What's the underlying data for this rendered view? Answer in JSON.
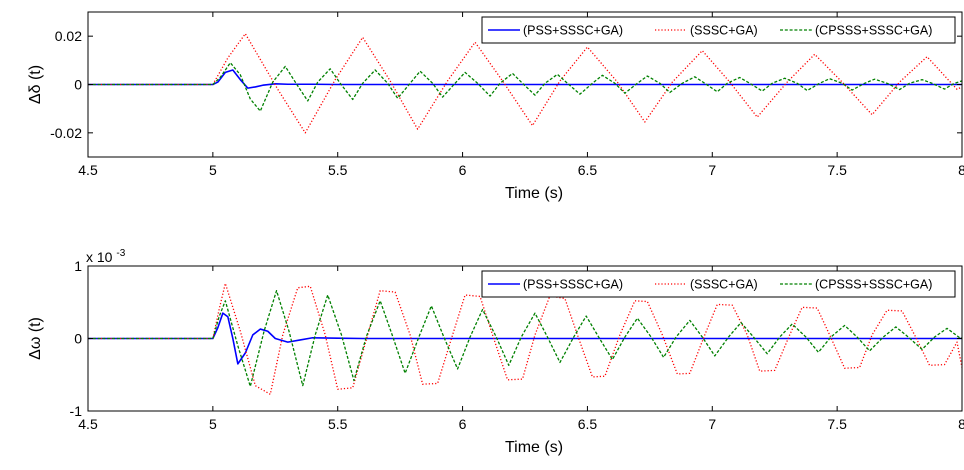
{
  "colors": {
    "series": [
      "#0000ff",
      "#ff0000",
      "#008000"
    ],
    "axes": "#000000",
    "background": "#ffffff"
  },
  "chart_data": [
    {
      "type": "line",
      "ylabel": "Δδ (t)",
      "xlabel": "Time (s)",
      "xlim": [
        4.5,
        8
      ],
      "ylim": [
        -0.03,
        0.03
      ],
      "xticks": [
        "4.5",
        "5",
        "5.5",
        "6",
        "6.5",
        "7",
        "7.5",
        "8"
      ],
      "yticks": [
        "-0.02",
        "0",
        "0.02"
      ],
      "ytick_values": [
        -0.02,
        0,
        0.02
      ],
      "legend_position": "top-right",
      "grid": false,
      "series": [
        {
          "name": "(PSS+SSSC+GA)",
          "style": "solid",
          "x": [
            4.5,
            5.0,
            5.02,
            5.05,
            5.08,
            5.11,
            5.14,
            5.17,
            5.2,
            5.25,
            5.3,
            5.4,
            5.5,
            8.0
          ],
          "y": [
            0,
            0,
            0.001,
            0.005,
            0.006,
            0.002,
            -0.0015,
            -0.001,
            -0.0003,
            0.0003,
            0.0001,
            0.0001,
            0,
            0
          ]
        },
        {
          "name": "(SSSC+GA)",
          "style": "dotted",
          "x": [
            4.5,
            5.0,
            5.06,
            5.13,
            5.26,
            5.37,
            5.49,
            5.6,
            5.71,
            5.82,
            5.94,
            6.05,
            6.16,
            6.28,
            6.39,
            6.5,
            6.62,
            6.73,
            6.84,
            6.96,
            7.07,
            7.18,
            7.3,
            7.41,
            7.52,
            7.64,
            7.75,
            7.86,
            7.98,
            8.0
          ],
          "y": [
            0,
            0,
            0.011,
            0.021,
            -0.002,
            -0.02,
            0.002,
            0.0195,
            0.0015,
            -0.0185,
            0.0015,
            0.0175,
            0.0015,
            -0.017,
            0.0015,
            0.0155,
            0.001,
            -0.0155,
            0.001,
            0.014,
            0.001,
            -0.0135,
            0.001,
            0.0125,
            0.001,
            -0.0125,
            0.001,
            0.0115,
            -0.002,
            -0.001
          ]
        },
        {
          "name": "(CPSSS+SSSC+GA)",
          "style": "dashed",
          "x": [
            4.5,
            5.0,
            5.03,
            5.07,
            5.11,
            5.15,
            5.19,
            5.24,
            5.29,
            5.33,
            5.38,
            5.42,
            5.47,
            5.51,
            5.56,
            5.6,
            5.65,
            5.7,
            5.74,
            5.79,
            5.83,
            5.88,
            5.92,
            5.97,
            6.01,
            6.06,
            6.11,
            6.15,
            6.2,
            6.24,
            6.29,
            6.33,
            6.38,
            6.42,
            6.47,
            6.52,
            6.56,
            6.61,
            6.65,
            6.7,
            6.74,
            6.79,
            6.83,
            6.88,
            6.93,
            6.97,
            7.02,
            7.06,
            7.11,
            7.15,
            7.2,
            7.24,
            7.29,
            7.34,
            7.38,
            7.43,
            7.47,
            7.52,
            7.56,
            7.61,
            7.65,
            7.7,
            7.75,
            7.79,
            7.84,
            7.88,
            7.93,
            7.97,
            8.0
          ],
          "y": [
            0,
            0,
            0.003,
            0.009,
            0.004,
            -0.006,
            -0.011,
            0.001,
            0.0075,
            0.001,
            -0.0068,
            0.001,
            0.0065,
            0.0005,
            -0.0062,
            0.0005,
            0.006,
            0.0005,
            -0.0057,
            0.0005,
            0.0055,
            0.0005,
            -0.0052,
            0.0005,
            0.005,
            0.0005,
            -0.0048,
            0.0005,
            0.0046,
            0.0005,
            -0.0044,
            0.0005,
            0.0042,
            0.0005,
            -0.004,
            0.0005,
            0.0038,
            0.0005,
            -0.0036,
            0.0005,
            0.0035,
            0.0005,
            -0.0033,
            0.0005,
            0.0032,
            0.0005,
            -0.003,
            0.0005,
            0.0029,
            0.0005,
            -0.0027,
            0.0005,
            0.0026,
            0.0005,
            -0.0025,
            0.0005,
            0.0024,
            0.0005,
            -0.0023,
            0.0005,
            0.0022,
            0.0005,
            -0.0021,
            0.0005,
            0.002,
            0.0005,
            -0.0019,
            0.0005,
            0.0015
          ]
        }
      ]
    },
    {
      "type": "line",
      "ylabel": "Δω (t)",
      "xlabel": "Time (s)",
      "exponent_base": "x 10",
      "exponent_power": "-3",
      "xlim": [
        4.5,
        8
      ],
      "ylim": [
        -1,
        1
      ],
      "xticks": [
        "4.5",
        "5",
        "5.5",
        "6",
        "6.5",
        "7",
        "7.5",
        "8"
      ],
      "yticks": [
        "-1",
        "0",
        "1"
      ],
      "ytick_values": [
        -1,
        0,
        1
      ],
      "legend_position": "top-right",
      "grid": false,
      "series": [
        {
          "name": "(PSS+SSSC+GA)",
          "style": "solid",
          "x": [
            4.5,
            5.0,
            5.02,
            5.04,
            5.06,
            5.08,
            5.1,
            5.13,
            5.16,
            5.19,
            5.22,
            5.25,
            5.3,
            5.35,
            5.4,
            5.5,
            5.6,
            8.0
          ],
          "y": [
            0,
            0,
            0.15,
            0.35,
            0.3,
            0.0,
            -0.35,
            -0.2,
            0.05,
            0.13,
            0.1,
            0.0,
            -0.05,
            -0.02,
            0.01,
            0.005,
            0,
            0
          ]
        },
        {
          "name": "(SSSC+GA)",
          "style": "dotted",
          "x": [
            4.5,
            5.0,
            5.025,
            5.05,
            5.11,
            5.17,
            5.23,
            5.28,
            5.34,
            5.39,
            5.45,
            5.5,
            5.56,
            5.62,
            5.67,
            5.73,
            5.79,
            5.84,
            5.9,
            5.96,
            6.01,
            6.07,
            6.12,
            6.18,
            6.24,
            6.29,
            6.35,
            6.41,
            6.46,
            6.52,
            6.57,
            6.63,
            6.69,
            6.74,
            6.8,
            6.86,
            6.91,
            6.97,
            7.02,
            7.08,
            7.14,
            7.19,
            7.25,
            7.31,
            7.36,
            7.42,
            7.47,
            7.53,
            7.59,
            7.64,
            7.7,
            7.76,
            7.81,
            7.87,
            7.93,
            7.98,
            8.0
          ],
          "y": [
            0,
            0,
            0.4,
            0.76,
            0.1,
            -0.65,
            -0.77,
            0.05,
            0.7,
            0.72,
            0.05,
            -0.7,
            -0.68,
            0.05,
            0.66,
            0.64,
            0.05,
            -0.63,
            -0.62,
            0.05,
            0.6,
            0.58,
            0.05,
            -0.57,
            -0.56,
            0.05,
            0.59,
            0.55,
            0.05,
            -0.53,
            -0.52,
            0.05,
            0.52,
            0.51,
            0.05,
            -0.49,
            -0.48,
            0.05,
            0.47,
            0.46,
            0.05,
            -0.45,
            -0.44,
            0.05,
            0.43,
            0.42,
            0.05,
            -0.41,
            -0.4,
            0.05,
            0.39,
            0.38,
            0.05,
            -0.37,
            -0.36,
            -0.05,
            -0.4
          ]
        },
        {
          "name": "(CPSSS+SSSC+GA)",
          "style": "dashed",
          "x": [
            4.5,
            5.0,
            5.025,
            5.05,
            5.1,
            5.15,
            5.205,
            5.255,
            5.305,
            5.36,
            5.41,
            5.46,
            5.515,
            5.565,
            5.615,
            5.67,
            5.72,
            5.77,
            5.825,
            5.875,
            5.925,
            5.98,
            6.03,
            6.08,
            6.135,
            6.185,
            6.235,
            6.29,
            6.34,
            6.39,
            6.445,
            6.495,
            6.545,
            6.6,
            6.65,
            6.7,
            6.755,
            6.805,
            6.855,
            6.91,
            6.96,
            7.01,
            7.065,
            7.115,
            7.165,
            7.22,
            7.27,
            7.32,
            7.375,
            7.425,
            7.475,
            7.53,
            7.58,
            7.63,
            7.685,
            7.735,
            7.785,
            7.84,
            7.89,
            7.94,
            7.995,
            8.0
          ],
          "y": [
            0,
            0,
            0.3,
            0.52,
            -0.1,
            -0.66,
            0.1,
            0.66,
            0.1,
            -0.65,
            0.05,
            0.6,
            0.05,
            -0.58,
            0.03,
            0.52,
            0.03,
            -0.48,
            0.02,
            0.45,
            0.02,
            -0.42,
            0.02,
            0.4,
            0.02,
            -0.37,
            0.02,
            0.35,
            0.02,
            -0.33,
            0.02,
            0.31,
            0.02,
            -0.29,
            0.02,
            0.28,
            0.02,
            -0.26,
            0.02,
            0.25,
            0.02,
            -0.24,
            0.02,
            0.22,
            0.02,
            -0.21,
            0.02,
            0.2,
            0.02,
            -0.19,
            0.02,
            0.18,
            0.02,
            -0.17,
            0.02,
            0.16,
            0.02,
            -0.15,
            0.02,
            0.14,
            0.0,
            0.01
          ]
        }
      ]
    }
  ]
}
